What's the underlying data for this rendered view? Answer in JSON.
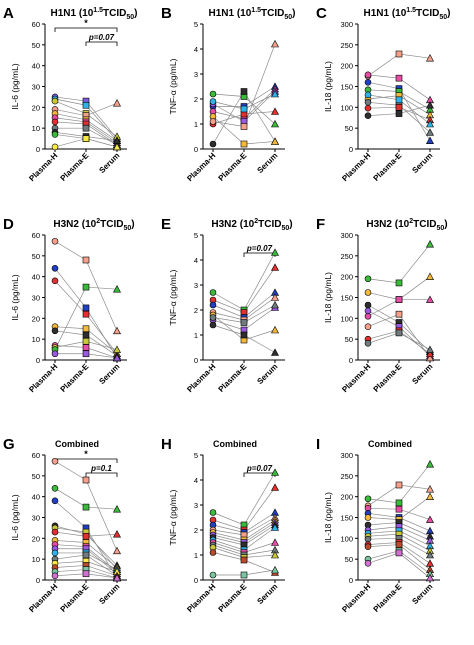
{
  "figure": {
    "groups": [
      "Plasma-H",
      "Plasma-E",
      "Serum"
    ]
  },
  "chart_data": [
    {
      "type": "scatter",
      "panel_letter": "A",
      "title": "H1N1 (10^1.5TCID50)",
      "ylabel": "IL-6 (pg/mL)",
      "ylim": [
        0,
        60
      ],
      "yticks": [
        0,
        10,
        20,
        30,
        40,
        50,
        60
      ],
      "categories": [
        "Plasma-H",
        "Plasma-E",
        "Serum"
      ],
      "annotations": [
        {
          "from": 0,
          "to": 2,
          "label": "*"
        },
        {
          "from": 1,
          "to": 2,
          "label": "p=0.07"
        }
      ],
      "series": [
        {
          "color": "#7a5be0",
          "values": [
            25,
            23,
            5
          ]
        },
        {
          "color": "#2db3e8",
          "values": [
            24,
            21,
            4
          ]
        },
        {
          "color": "#c8c83a",
          "values": [
            23,
            17,
            6
          ]
        },
        {
          "color": "#f4a08a",
          "values": [
            19,
            16,
            22
          ]
        },
        {
          "color": "#f2b93b",
          "values": [
            17,
            14,
            4
          ]
        },
        {
          "color": "#e64ea6",
          "values": [
            15,
            13,
            3
          ]
        },
        {
          "color": "#e03030",
          "values": [
            13,
            12,
            2
          ]
        },
        {
          "color": "#6f7b7e",
          "values": [
            10,
            10,
            2
          ]
        },
        {
          "color": "#2e2e2e",
          "values": [
            8,
            6,
            4
          ]
        },
        {
          "color": "#3aba3a",
          "values": [
            7,
            5,
            1
          ]
        },
        {
          "color": "#f8e84a",
          "values": [
            1,
            5,
            1
          ]
        }
      ]
    },
    {
      "type": "scatter",
      "panel_letter": "B",
      "title": "H1N1 (10^1.5TCID50)",
      "ylabel": "TNF-α (pg/mL)",
      "ylim": [
        0,
        5
      ],
      "yticks": [
        0,
        1,
        2,
        3,
        4,
        5
      ],
      "categories": [
        "Plasma-H",
        "Plasma-E",
        "Serum"
      ],
      "annotations": [],
      "series": [
        {
          "color": "#3aba3a",
          "values": [
            2.2,
            2.1,
            1.0
          ]
        },
        {
          "color": "#2e2e2e",
          "values": [
            0.2,
            2.3,
            0.3
          ]
        },
        {
          "color": "#2040c0",
          "values": [
            1.7,
            1.7,
            2.5
          ]
        },
        {
          "color": "#e64ea6",
          "values": [
            1.5,
            1.2,
            2.4
          ]
        },
        {
          "color": "#9b59e0",
          "values": [
            1.8,
            1.1,
            2.3
          ]
        },
        {
          "color": "#e03030",
          "values": [
            1.0,
            1.4,
            1.5
          ]
        },
        {
          "color": "#f2b93b",
          "values": [
            1.3,
            0.2,
            0.3
          ]
        },
        {
          "color": "#2db3e8",
          "values": [
            1.9,
            1.6,
            2.2
          ]
        },
        {
          "color": "#f4a08a",
          "values": [
            1.1,
            0.9,
            4.2
          ]
        }
      ]
    },
    {
      "type": "scatter",
      "panel_letter": "C",
      "title": "H1N1 (10^1.5TCID50)",
      "ylabel": "IL-18 (pg/mL)",
      "ylim": [
        0,
        300
      ],
      "yticks": [
        0,
        50,
        100,
        150,
        200,
        250,
        300
      ],
      "categories": [
        "Plasma-H",
        "Plasma-E",
        "Serum"
      ],
      "annotations": [],
      "series": [
        {
          "color": "#f4a08a",
          "values": [
            175,
            228,
            218
          ]
        },
        {
          "color": "#e64ea6",
          "values": [
            178,
            170,
            118
          ]
        },
        {
          "color": "#2040c0",
          "values": [
            160,
            145,
            20
          ]
        },
        {
          "color": "#3aba3a",
          "values": [
            142,
            138,
            95
          ]
        },
        {
          "color": "#f2b93b",
          "values": [
            120,
            128,
            82
          ]
        },
        {
          "color": "#6f7b7e",
          "values": [
            112,
            105,
            40
          ]
        },
        {
          "color": "#e03030",
          "values": [
            98,
            100,
            70
          ]
        },
        {
          "color": "#2e2e2e",
          "values": [
            80,
            85,
            105
          ]
        },
        {
          "color": "#2db3e8",
          "values": [
            130,
            118,
            60
          ]
        }
      ]
    },
    {
      "type": "scatter",
      "panel_letter": "D",
      "title": "H3N2 (10^2TCID50)",
      "ylabel": "IL-6 (pg/mL)",
      "ylim": [
        0,
        60
      ],
      "yticks": [
        0,
        10,
        20,
        30,
        40,
        50,
        60
      ],
      "categories": [
        "Plasma-H",
        "Plasma-E",
        "Serum"
      ],
      "annotations": [],
      "series": [
        {
          "color": "#f4a08a",
          "values": [
            57,
            48,
            14
          ]
        },
        {
          "color": "#2040c0",
          "values": [
            44,
            25,
            1
          ]
        },
        {
          "color": "#e03030",
          "values": [
            38,
            22,
            3
          ]
        },
        {
          "color": "#f2b93b",
          "values": [
            16,
            15,
            3
          ]
        },
        {
          "color": "#2e2e2e",
          "values": [
            14,
            12,
            2
          ]
        },
        {
          "color": "#e64ea6",
          "values": [
            7,
            6,
            1
          ]
        },
        {
          "color": "#c8c83a",
          "values": [
            6,
            9,
            5
          ]
        },
        {
          "color": "#3aba3a",
          "values": [
            5,
            35,
            34
          ]
        },
        {
          "color": "#9b59e0",
          "values": [
            3,
            3,
            1
          ]
        }
      ]
    },
    {
      "type": "scatter",
      "panel_letter": "E",
      "title": "H3N2 (10^2TCID50)",
      "ylabel": "TNF-α (pg/mL)",
      "ylim": [
        0,
        5
      ],
      "yticks": [
        0,
        1,
        2,
        3,
        4,
        5
      ],
      "categories": [
        "Plasma-H",
        "Plasma-E",
        "Serum"
      ],
      "annotations": [
        {
          "from": 1,
          "to": 2,
          "label": "p=0.07"
        }
      ],
      "series": [
        {
          "color": "#3aba3a",
          "values": [
            2.7,
            2.0,
            4.3
          ]
        },
        {
          "color": "#e03030",
          "values": [
            2.4,
            1.9,
            3.7
          ]
        },
        {
          "color": "#2040c0",
          "values": [
            2.2,
            1.7,
            2.7
          ]
        },
        {
          "color": "#f4a08a",
          "values": [
            1.9,
            1.6,
            2.5
          ]
        },
        {
          "color": "#f2b93b",
          "values": [
            1.8,
            0.8,
            1.2
          ]
        },
        {
          "color": "#9b59e0",
          "values": [
            1.6,
            1.2,
            2.1
          ]
        },
        {
          "color": "#2e2e2e",
          "values": [
            1.4,
            1.0,
            0.3
          ]
        },
        {
          "color": "#6f7b7e",
          "values": [
            1.7,
            1.5,
            2.2
          ]
        }
      ]
    },
    {
      "type": "scatter",
      "panel_letter": "F",
      "title": "H3N2 (10^2TCID50)",
      "ylabel": "IL-18 (pg/mL)",
      "ylim": [
        0,
        300
      ],
      "yticks": [
        0,
        50,
        100,
        150,
        200,
        250,
        300
      ],
      "categories": [
        "Plasma-H",
        "Plasma-E",
        "Serum"
      ],
      "annotations": [],
      "series": [
        {
          "color": "#3aba3a",
          "values": [
            195,
            185,
            278
          ]
        },
        {
          "color": "#f2b93b",
          "values": [
            162,
            145,
            200
          ]
        },
        {
          "color": "#e64ea6",
          "values": [
            105,
            145,
            145
          ]
        },
        {
          "color": "#2e2e2e",
          "values": [
            132,
            90,
            20
          ]
        },
        {
          "color": "#9b59e0",
          "values": [
            118,
            80,
            10
          ]
        },
        {
          "color": "#f4a08a",
          "values": [
            80,
            110,
            5
          ]
        },
        {
          "color": "#e03030",
          "values": [
            50,
            70,
            15
          ]
        },
        {
          "color": "#6f7b7e",
          "values": [
            40,
            65,
            25
          ]
        }
      ]
    },
    {
      "type": "scatter",
      "panel_letter": "G",
      "title": "Combined",
      "ylabel": "IL-6 (pg/mL)",
      "ylim": [
        0,
        60
      ],
      "yticks": [
        0,
        10,
        20,
        30,
        40,
        50,
        60
      ],
      "categories": [
        "Plasma-H",
        "Plasma-E",
        "Serum"
      ],
      "annotations": [
        {
          "from": 0,
          "to": 2,
          "label": "*"
        },
        {
          "from": 1,
          "to": 2,
          "label": "p=0.1"
        }
      ],
      "series": [
        {
          "color": "#f4a08a",
          "values": [
            57,
            48,
            14
          ]
        },
        {
          "color": "#3aba3a",
          "values": [
            44,
            35,
            34
          ]
        },
        {
          "color": "#2040c0",
          "values": [
            38,
            25,
            1
          ]
        },
        {
          "color": "#2e2e2e",
          "values": [
            26,
            22,
            7
          ]
        },
        {
          "color": "#c8c83a",
          "values": [
            25,
            23,
            5
          ]
        },
        {
          "color": "#e03030",
          "values": [
            23,
            21,
            22
          ]
        },
        {
          "color": "#f2b93b",
          "values": [
            19,
            18,
            6
          ]
        },
        {
          "color": "#e64ea6",
          "values": [
            17,
            16,
            4
          ]
        },
        {
          "color": "#9b59e0",
          "values": [
            15,
            15,
            3
          ]
        },
        {
          "color": "#2db3e8",
          "values": [
            13,
            13,
            5
          ]
        },
        {
          "color": "#6f7b7e",
          "values": [
            10,
            12,
            2
          ]
        },
        {
          "color": "#f8e84a",
          "values": [
            8,
            9,
            4
          ]
        },
        {
          "color": "#b84a2e",
          "values": [
            6,
            7,
            2
          ]
        },
        {
          "color": "#7cc4a0",
          "values": [
            4,
            5,
            1
          ]
        },
        {
          "color": "#d070d0",
          "values": [
            2,
            3,
            1
          ]
        }
      ]
    },
    {
      "type": "scatter",
      "panel_letter": "H",
      "title": "Combined",
      "ylabel": "TNF-α (pg/mL)",
      "ylim": [
        0,
        5
      ],
      "yticks": [
        0,
        1,
        2,
        3,
        4,
        5
      ],
      "categories": [
        "Plasma-H",
        "Plasma-E",
        "Serum"
      ],
      "annotations": [
        {
          "from": 1,
          "to": 2,
          "label": "p=0.07"
        }
      ],
      "series": [
        {
          "color": "#3aba3a",
          "values": [
            2.7,
            2.2,
            4.3
          ]
        },
        {
          "color": "#e03030",
          "values": [
            2.4,
            2.0,
            3.7
          ]
        },
        {
          "color": "#2040c0",
          "values": [
            2.2,
            1.9,
            2.7
          ]
        },
        {
          "color": "#f4a08a",
          "values": [
            2.0,
            1.8,
            2.5
          ]
        },
        {
          "color": "#f2b93b",
          "values": [
            1.9,
            1.6,
            2.4
          ]
        },
        {
          "color": "#9b59e0",
          "values": [
            1.8,
            1.5,
            2.3
          ]
        },
        {
          "color": "#2e2e2e",
          "values": [
            1.7,
            1.4,
            2.2
          ]
        },
        {
          "color": "#2db3e8",
          "values": [
            1.6,
            1.2,
            2.1
          ]
        },
        {
          "color": "#e64ea6",
          "values": [
            1.5,
            1.1,
            1.5
          ]
        },
        {
          "color": "#6f7b7e",
          "values": [
            1.4,
            1.0,
            1.2
          ]
        },
        {
          "color": "#c8c83a",
          "values": [
            1.3,
            0.9,
            1.0
          ]
        },
        {
          "color": "#b84a2e",
          "values": [
            1.1,
            0.8,
            0.3
          ]
        },
        {
          "color": "#7cc4a0",
          "values": [
            0.2,
            0.2,
            0.4
          ]
        }
      ]
    },
    {
      "type": "scatter",
      "panel_letter": "I",
      "title": "Combined",
      "ylabel": "IL-18 (pg/mL)",
      "ylim": [
        0,
        300
      ],
      "yticks": [
        0,
        50,
        100,
        150,
        200,
        250,
        300
      ],
      "categories": [
        "Plasma-H",
        "Plasma-E",
        "Serum"
      ],
      "annotations": [],
      "series": [
        {
          "color": "#3aba3a",
          "values": [
            195,
            185,
            278
          ]
        },
        {
          "color": "#f4a08a",
          "values": [
            178,
            228,
            218
          ]
        },
        {
          "color": "#e64ea6",
          "values": [
            172,
            170,
            145
          ]
        },
        {
          "color": "#2040c0",
          "values": [
            160,
            150,
            118
          ]
        },
        {
          "color": "#f2b93b",
          "values": [
            150,
            145,
            200
          ]
        },
        {
          "color": "#2e2e2e",
          "values": [
            132,
            138,
            105
          ]
        },
        {
          "color": "#9b59e0",
          "values": [
            120,
            128,
            95
          ]
        },
        {
          "color": "#2db3e8",
          "values": [
            112,
            118,
            82
          ]
        },
        {
          "color": "#c8c83a",
          "values": [
            105,
            110,
            70
          ]
        },
        {
          "color": "#6f7b7e",
          "values": [
            98,
            100,
            60
          ]
        },
        {
          "color": "#e03030",
          "values": [
            85,
            90,
            40
          ]
        },
        {
          "color": "#b84a2e",
          "values": [
            80,
            85,
            25
          ]
        },
        {
          "color": "#7cc4a0",
          "values": [
            50,
            70,
            15
          ]
        },
        {
          "color": "#d070d0",
          "values": [
            40,
            65,
            5
          ]
        }
      ]
    }
  ]
}
